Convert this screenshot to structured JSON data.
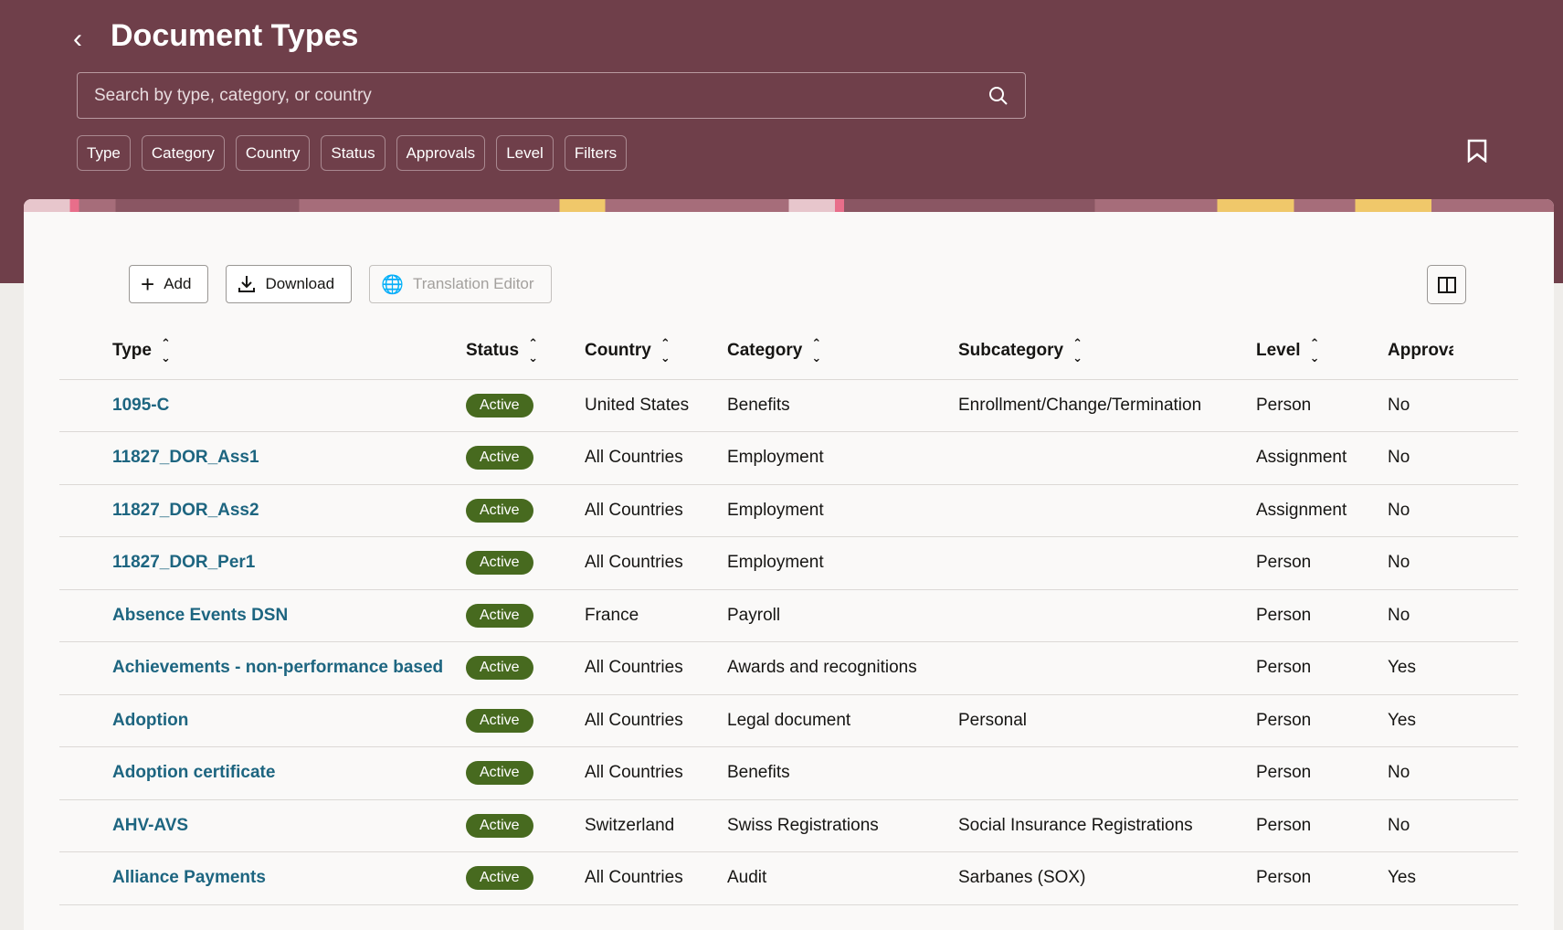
{
  "header": {
    "title": "Document Types",
    "search_placeholder": "Search by type, category, or country",
    "chips": [
      "Type",
      "Category",
      "Country",
      "Status",
      "Approvals",
      "Level",
      "Filters"
    ]
  },
  "colors": {
    "header_bg": "#6f3f4a",
    "link": "#1d6580",
    "active_badge": "#476a1f"
  },
  "toolbar": {
    "add": "Add",
    "download": "Download",
    "translation_editor": "Translation Editor"
  },
  "table": {
    "columns": [
      "Type",
      "Status",
      "Country",
      "Category",
      "Subcategory",
      "Level",
      "Approval Required"
    ],
    "rows": [
      [
        "1095-C",
        "Active",
        "United States",
        "Benefits",
        "Enrollment/Change/Termination",
        "Person",
        "No"
      ],
      [
        "11827_DOR_Ass1",
        "Active",
        "All Countries",
        "Employment",
        "",
        "Assignment",
        "No"
      ],
      [
        "11827_DOR_Ass2",
        "Active",
        "All Countries",
        "Employment",
        "",
        "Assignment",
        "No"
      ],
      [
        "11827_DOR_Per1",
        "Active",
        "All Countries",
        "Employment",
        "",
        "Person",
        "No"
      ],
      [
        "Absence Events DSN",
        "Active",
        "France",
        "Payroll",
        "",
        "Person",
        "No"
      ],
      [
        "Achievements - non-performance based",
        "Active",
        "All Countries",
        "Awards and recognitions",
        "",
        "Person",
        "Yes"
      ],
      [
        "Adoption",
        "Active",
        "All Countries",
        "Legal document",
        "Personal",
        "Person",
        "Yes"
      ],
      [
        "Adoption certificate",
        "Active",
        "All Countries",
        "Benefits",
        "",
        "Person",
        "No"
      ],
      [
        "AHV-AVS",
        "Active",
        "Switzerland",
        "Swiss Registrations",
        "Social Insurance Registrations",
        "Person",
        "No"
      ],
      [
        "Alliance Payments",
        "Active",
        "All Countries",
        "Audit",
        "Sarbanes (SOX)",
        "Person",
        "Yes"
      ]
    ]
  }
}
